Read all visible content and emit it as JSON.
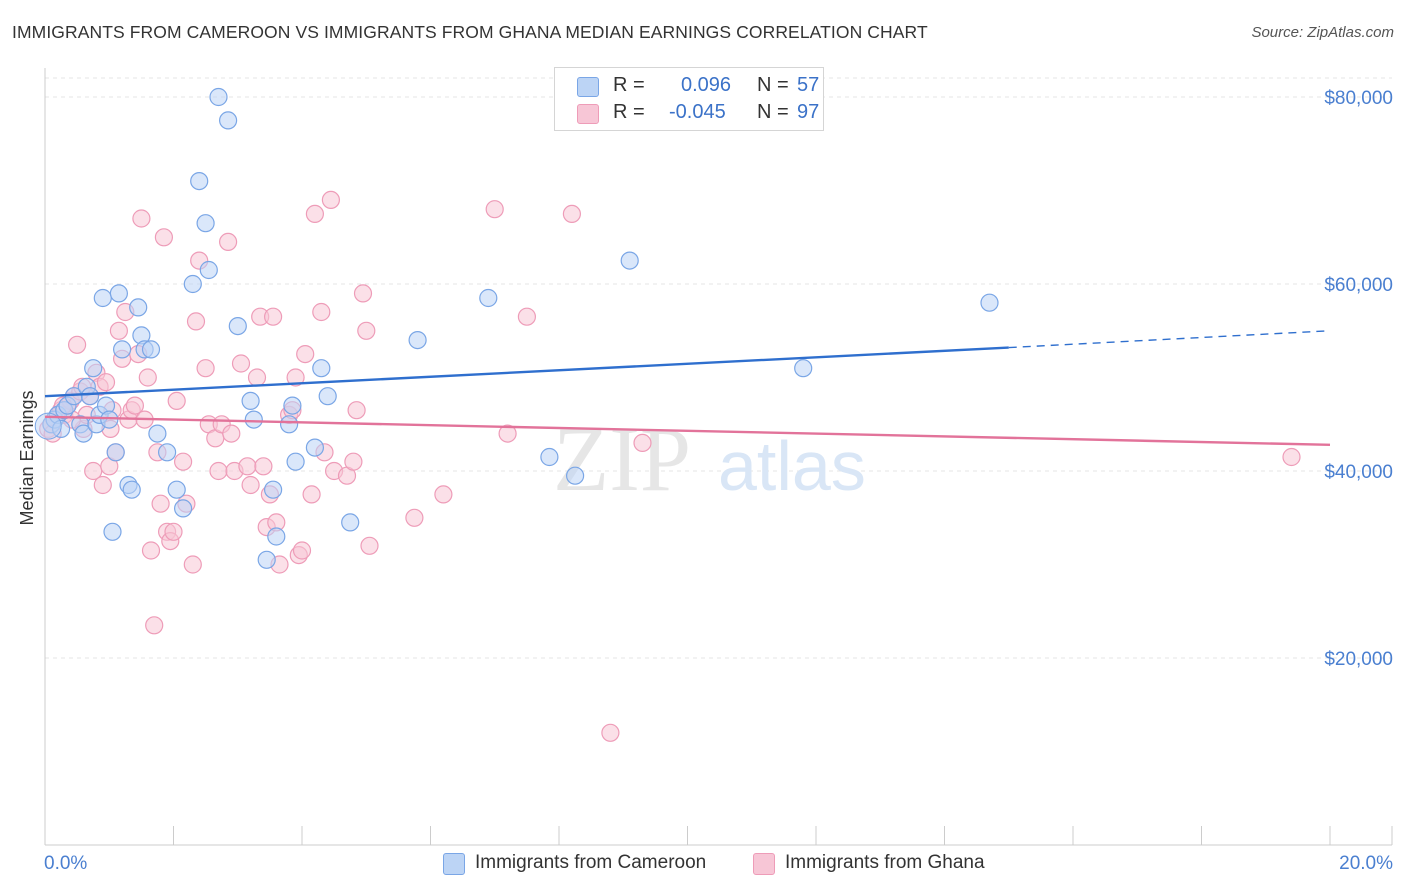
{
  "title": "IMMIGRANTS FROM CAMEROON VS IMMIGRANTS FROM GHANA MEDIAN EARNINGS CORRELATION CHART",
  "source": "Source: ZipAtlas.com",
  "watermark": {
    "zip": "ZIP",
    "atlas": "atlas"
  },
  "legend": {
    "rows": [
      {
        "r_label": "R =",
        "r_value": "0.096",
        "n_label": "N =",
        "n_value": "57"
      },
      {
        "r_label": "R =",
        "r_value": "-0.045",
        "n_label": "N =",
        "n_value": "97"
      }
    ]
  },
  "colors": {
    "cameroon_fill": "#bcd4f5",
    "cameroon_stroke": "#7aa6e6",
    "cameroon_line": "#2f6fce",
    "ghana_fill": "#f7c6d6",
    "ghana_stroke": "#ee9cb8",
    "ghana_line": "#e2739a",
    "axis_text": "#4a7fd0"
  },
  "chart_data": {
    "type": "scatter",
    "title": "IMMIGRANTS FROM CAMEROON VS IMMIGRANTS FROM GHANA MEDIAN EARNINGS CORRELATION CHART",
    "xlabel": "",
    "ylabel": "Median Earnings",
    "xlim": [
      0,
      20
    ],
    "ylim": [
      0,
      82000
    ],
    "x_tick_labels": [
      "0.0%",
      "20.0%"
    ],
    "y_ticks": [
      20000,
      40000,
      60000,
      80000
    ],
    "y_tick_labels": [
      "$20,000",
      "$40,000",
      "$60,000",
      "$80,000"
    ],
    "grid": true,
    "legend_position": "top-center",
    "series": [
      {
        "name": "Immigrants from Cameroon",
        "r": 0.096,
        "n": 57,
        "trend": {
          "x0": 0,
          "y0": 48000,
          "x1": 15.0,
          "y1": 53200,
          "dashed_to_x": 20,
          "dashed_to_y": 55000
        },
        "points": [
          [
            0.1,
            45000
          ],
          [
            0.15,
            45500
          ],
          [
            0.2,
            46000
          ],
          [
            0.3,
            46500
          ],
          [
            0.35,
            47000
          ],
          [
            0.45,
            48000
          ],
          [
            0.55,
            45000
          ],
          [
            0.6,
            44000
          ],
          [
            0.65,
            49000
          ],
          [
            0.7,
            48000
          ],
          [
            0.75,
            51000
          ],
          [
            0.8,
            45000
          ],
          [
            0.85,
            46000
          ],
          [
            0.9,
            58500
          ],
          [
            0.95,
            47000
          ],
          [
            1.0,
            45500
          ],
          [
            1.05,
            33500
          ],
          [
            1.1,
            42000
          ],
          [
            1.15,
            59000
          ],
          [
            1.2,
            53000
          ],
          [
            1.3,
            38500
          ],
          [
            1.35,
            38000
          ],
          [
            1.45,
            57500
          ],
          [
            1.5,
            54500
          ],
          [
            1.55,
            53000
          ],
          [
            1.65,
            53000
          ],
          [
            1.75,
            44000
          ],
          [
            1.9,
            42000
          ],
          [
            2.05,
            38000
          ],
          [
            2.15,
            36000
          ],
          [
            2.3,
            60000
          ],
          [
            2.4,
            71000
          ],
          [
            2.5,
            66500
          ],
          [
            2.55,
            61500
          ],
          [
            2.7,
            80000
          ],
          [
            2.85,
            77500
          ],
          [
            3.0,
            55500
          ],
          [
            3.2,
            47500
          ],
          [
            3.25,
            45500
          ],
          [
            3.45,
            30500
          ],
          [
            3.55,
            38000
          ],
          [
            3.6,
            33000
          ],
          [
            3.8,
            45000
          ],
          [
            3.85,
            47000
          ],
          [
            3.9,
            41000
          ],
          [
            4.2,
            42500
          ],
          [
            4.3,
            51000
          ],
          [
            4.4,
            48000
          ],
          [
            4.75,
            34500
          ],
          [
            5.8,
            54000
          ],
          [
            6.9,
            58500
          ],
          [
            7.85,
            41500
          ],
          [
            8.25,
            39500
          ],
          [
            9.1,
            62500
          ],
          [
            11.8,
            51000
          ],
          [
            14.7,
            58000
          ],
          [
            0.25,
            44500
          ]
        ]
      },
      {
        "name": "Immigrants from Ghana",
        "r": -0.045,
        "n": 97,
        "trend": {
          "x0": 0,
          "y0": 45800,
          "x1": 20,
          "y1": 42800
        },
        "points": [
          [
            0.05,
            44500
          ],
          [
            0.1,
            45000
          ],
          [
            0.15,
            45500
          ],
          [
            0.2,
            46000
          ],
          [
            0.25,
            46500
          ],
          [
            0.3,
            46000
          ],
          [
            0.35,
            47000
          ],
          [
            0.4,
            47500
          ],
          [
            0.45,
            48000
          ],
          [
            0.5,
            53500
          ],
          [
            0.55,
            48500
          ],
          [
            0.6,
            44500
          ],
          [
            0.65,
            46000
          ],
          [
            0.7,
            48000
          ],
          [
            0.75,
            40000
          ],
          [
            0.8,
            50500
          ],
          [
            0.85,
            49000
          ],
          [
            0.9,
            38500
          ],
          [
            0.95,
            49500
          ],
          [
            1.0,
            40500
          ],
          [
            1.05,
            46500
          ],
          [
            1.1,
            42000
          ],
          [
            1.15,
            55000
          ],
          [
            1.2,
            52000
          ],
          [
            1.25,
            57000
          ],
          [
            1.3,
            45500
          ],
          [
            1.35,
            46500
          ],
          [
            1.4,
            47000
          ],
          [
            1.45,
            52500
          ],
          [
            1.5,
            67000
          ],
          [
            1.55,
            45500
          ],
          [
            1.6,
            50000
          ],
          [
            1.65,
            31500
          ],
          [
            1.7,
            23500
          ],
          [
            1.75,
            42000
          ],
          [
            1.8,
            36500
          ],
          [
            1.85,
            65000
          ],
          [
            1.9,
            33500
          ],
          [
            1.95,
            32500
          ],
          [
            2.0,
            33500
          ],
          [
            2.05,
            47500
          ],
          [
            2.15,
            41000
          ],
          [
            2.2,
            36500
          ],
          [
            2.3,
            30000
          ],
          [
            2.35,
            56000
          ],
          [
            2.4,
            62500
          ],
          [
            2.5,
            51000
          ],
          [
            2.55,
            45000
          ],
          [
            2.65,
            43500
          ],
          [
            2.7,
            40000
          ],
          [
            2.75,
            45000
          ],
          [
            2.85,
            64500
          ],
          [
            2.9,
            44000
          ],
          [
            2.95,
            40000
          ],
          [
            3.05,
            51500
          ],
          [
            3.15,
            40500
          ],
          [
            3.2,
            38500
          ],
          [
            3.3,
            50000
          ],
          [
            3.35,
            56500
          ],
          [
            3.4,
            40500
          ],
          [
            3.45,
            34000
          ],
          [
            3.5,
            37500
          ],
          [
            3.55,
            56500
          ],
          [
            3.6,
            34500
          ],
          [
            3.65,
            30000
          ],
          [
            3.8,
            46000
          ],
          [
            3.85,
            46500
          ],
          [
            3.9,
            50000
          ],
          [
            3.95,
            31000
          ],
          [
            4.0,
            31500
          ],
          [
            4.05,
            52500
          ],
          [
            4.15,
            37500
          ],
          [
            4.2,
            67500
          ],
          [
            4.3,
            57000
          ],
          [
            4.35,
            42000
          ],
          [
            4.45,
            69000
          ],
          [
            4.5,
            40000
          ],
          [
            4.7,
            39500
          ],
          [
            4.8,
            41000
          ],
          [
            4.85,
            46500
          ],
          [
            4.95,
            59000
          ],
          [
            5.0,
            55000
          ],
          [
            5.05,
            32000
          ],
          [
            5.75,
            35000
          ],
          [
            6.2,
            37500
          ],
          [
            7.0,
            68000
          ],
          [
            7.2,
            44000
          ],
          [
            7.5,
            56500
          ],
          [
            8.2,
            67500
          ],
          [
            8.8,
            12000
          ],
          [
            9.3,
            43000
          ],
          [
            19.4,
            41500
          ],
          [
            0.12,
            44000
          ],
          [
            0.28,
            47000
          ],
          [
            0.42,
            45500
          ],
          [
            0.58,
            49000
          ],
          [
            1.02,
            44500
          ]
        ]
      }
    ]
  },
  "bottom_legend": [
    {
      "label": "Immigrants from Cameroon"
    },
    {
      "label": "Immigrants from Ghana"
    }
  ]
}
